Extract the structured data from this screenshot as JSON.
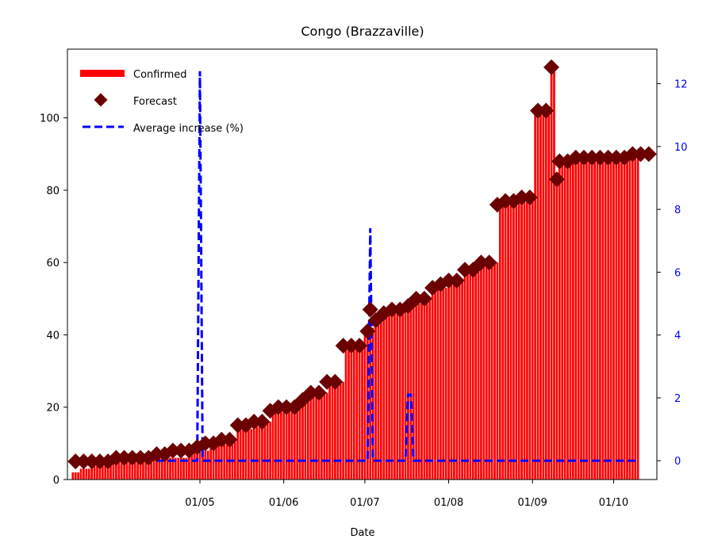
{
  "chart_data": {
    "type": "bar",
    "title": "Congo (Brazzaville)",
    "xlabel": "Date",
    "ylabel": "",
    "y2label": "",
    "date_start": "2020-03-15",
    "date_end": "2020-10-10",
    "xlim": [
      "2020-03-13",
      "2020-10-17"
    ],
    "ylim": [
      0,
      119
    ],
    "y2lim": [
      -0.6,
      13.1
    ],
    "x_ticks": [
      {
        "date": "2020-05-01",
        "label": "01/05"
      },
      {
        "date": "2020-06-01",
        "label": "01/06"
      },
      {
        "date": "2020-07-01",
        "label": "01/07"
      },
      {
        "date": "2020-08-01",
        "label": "01/08"
      },
      {
        "date": "2020-09-01",
        "label": "01/09"
      },
      {
        "date": "2020-10-01",
        "label": "01/10"
      }
    ],
    "y_ticks": [
      0,
      20,
      40,
      60,
      80,
      100
    ],
    "y2_ticks": [
      0,
      2,
      4,
      6,
      8,
      10,
      12
    ],
    "legend_position": "top-left",
    "grid": false,
    "colors": {
      "confirmed": "#ff0000",
      "forecast": "#6b0000",
      "average": "#0000ff",
      "right_axis": "#0000ff"
    },
    "series": [
      {
        "name": "Confirmed",
        "type": "bar",
        "axis": "left",
        "steps": [
          {
            "date": "2020-03-15",
            "value": 2
          },
          {
            "date": "2020-03-18",
            "value": 3
          },
          {
            "date": "2020-03-22",
            "value": 4
          },
          {
            "date": "2020-03-27",
            "value": 5
          },
          {
            "date": "2020-04-01",
            "value": 5
          },
          {
            "date": "2020-04-14",
            "value": 6
          },
          {
            "date": "2020-04-28",
            "value": 8
          },
          {
            "date": "2020-05-05",
            "value": 10
          },
          {
            "date": "2020-05-12",
            "value": 11
          },
          {
            "date": "2020-05-15",
            "value": 14
          },
          {
            "date": "2020-05-22",
            "value": 16
          },
          {
            "date": "2020-05-28",
            "value": 19
          },
          {
            "date": "2020-06-05",
            "value": 20
          },
          {
            "date": "2020-06-08",
            "value": 22
          },
          {
            "date": "2020-06-12",
            "value": 24
          },
          {
            "date": "2020-06-18",
            "value": 27
          },
          {
            "date": "2020-06-24",
            "value": 37
          },
          {
            "date": "2020-07-01",
            "value": 40
          },
          {
            "date": "2020-07-03",
            "value": 42
          },
          {
            "date": "2020-07-06",
            "value": 44
          },
          {
            "date": "2020-07-09",
            "value": 46
          },
          {
            "date": "2020-07-16",
            "value": 48
          },
          {
            "date": "2020-07-20",
            "value": 50
          },
          {
            "date": "2020-07-26",
            "value": 53
          },
          {
            "date": "2020-08-02",
            "value": 55
          },
          {
            "date": "2020-08-07",
            "value": 58
          },
          {
            "date": "2020-08-14",
            "value": 60
          },
          {
            "date": "2020-08-20",
            "value": 76
          },
          {
            "date": "2020-08-23",
            "value": 77
          },
          {
            "date": "2020-08-27",
            "value": 78
          },
          {
            "date": "2020-09-02",
            "value": 102
          },
          {
            "date": "2020-09-08",
            "value": 114
          },
          {
            "date": "2020-09-10",
            "value": 83
          },
          {
            "date": "2020-09-11",
            "value": 88
          },
          {
            "date": "2020-09-16",
            "value": 89
          },
          {
            "date": "2020-10-08",
            "value": 90
          }
        ]
      },
      {
        "name": "Forecast",
        "type": "scatter",
        "axis": "left",
        "marker": "diamond",
        "points": [
          [
            "2020-03-16",
            5
          ],
          [
            "2020-03-19",
            5
          ],
          [
            "2020-03-22",
            5
          ],
          [
            "2020-03-25",
            5
          ],
          [
            "2020-03-28",
            5
          ],
          [
            "2020-03-31",
            6
          ],
          [
            "2020-04-03",
            6
          ],
          [
            "2020-04-06",
            6
          ],
          [
            "2020-04-09",
            6
          ],
          [
            "2020-04-12",
            6
          ],
          [
            "2020-04-15",
            7
          ],
          [
            "2020-04-18",
            7
          ],
          [
            "2020-04-21",
            8
          ],
          [
            "2020-04-24",
            8
          ],
          [
            "2020-04-27",
            8
          ],
          [
            "2020-04-30",
            9
          ],
          [
            "2020-05-03",
            10
          ],
          [
            "2020-05-06",
            10
          ],
          [
            "2020-05-09",
            11
          ],
          [
            "2020-05-12",
            11
          ],
          [
            "2020-05-15",
            15
          ],
          [
            "2020-05-18",
            15
          ],
          [
            "2020-05-21",
            16
          ],
          [
            "2020-05-24",
            16
          ],
          [
            "2020-05-27",
            19
          ],
          [
            "2020-05-30",
            20
          ],
          [
            "2020-06-02",
            20
          ],
          [
            "2020-06-05",
            20
          ],
          [
            "2020-06-08",
            22
          ],
          [
            "2020-06-11",
            24
          ],
          [
            "2020-06-14",
            24
          ],
          [
            "2020-06-17",
            27
          ],
          [
            "2020-06-20",
            27
          ],
          [
            "2020-06-23",
            37
          ],
          [
            "2020-06-26",
            37
          ],
          [
            "2020-06-29",
            37
          ],
          [
            "2020-07-02",
            41
          ],
          [
            "2020-07-03",
            47
          ],
          [
            "2020-07-05",
            44
          ],
          [
            "2020-07-08",
            46
          ],
          [
            "2020-07-11",
            47
          ],
          [
            "2020-07-14",
            47
          ],
          [
            "2020-07-17",
            48
          ],
          [
            "2020-07-20",
            50
          ],
          [
            "2020-07-23",
            50
          ],
          [
            "2020-07-26",
            53
          ],
          [
            "2020-07-29",
            54
          ],
          [
            "2020-08-01",
            55
          ],
          [
            "2020-08-04",
            55
          ],
          [
            "2020-08-07",
            58
          ],
          [
            "2020-08-10",
            58
          ],
          [
            "2020-08-13",
            60
          ],
          [
            "2020-08-16",
            60
          ],
          [
            "2020-08-19",
            76
          ],
          [
            "2020-08-22",
            77
          ],
          [
            "2020-08-25",
            77
          ],
          [
            "2020-08-28",
            78
          ],
          [
            "2020-08-31",
            78
          ],
          [
            "2020-09-03",
            102
          ],
          [
            "2020-09-06",
            102
          ],
          [
            "2020-09-08",
            114
          ],
          [
            "2020-09-10",
            83
          ],
          [
            "2020-09-11",
            88
          ],
          [
            "2020-09-14",
            88
          ],
          [
            "2020-09-17",
            89
          ],
          [
            "2020-09-20",
            89
          ],
          [
            "2020-09-23",
            89
          ],
          [
            "2020-09-26",
            89
          ],
          [
            "2020-09-29",
            89
          ],
          [
            "2020-10-02",
            89
          ],
          [
            "2020-10-05",
            89
          ],
          [
            "2020-10-08",
            90
          ],
          [
            "2020-10-11",
            90
          ],
          [
            "2020-10-14",
            90
          ]
        ]
      },
      {
        "name": "Average increase (%)",
        "type": "line",
        "axis": "right",
        "style": "dashed",
        "points": [
          [
            "2020-03-15",
            0.0
          ],
          [
            "2020-04-30",
            0.0
          ],
          [
            "2020-05-01",
            12.4
          ],
          [
            "2020-05-02",
            0.0
          ],
          [
            "2020-07-02",
            0.0
          ],
          [
            "2020-07-03",
            7.4
          ],
          [
            "2020-07-04",
            0.0
          ],
          [
            "2020-07-16",
            0.0
          ],
          [
            "2020-07-17",
            2.1
          ],
          [
            "2020-07-18",
            2.1
          ],
          [
            "2020-07-19",
            0.0
          ],
          [
            "2020-10-10",
            0.0
          ]
        ]
      }
    ]
  }
}
